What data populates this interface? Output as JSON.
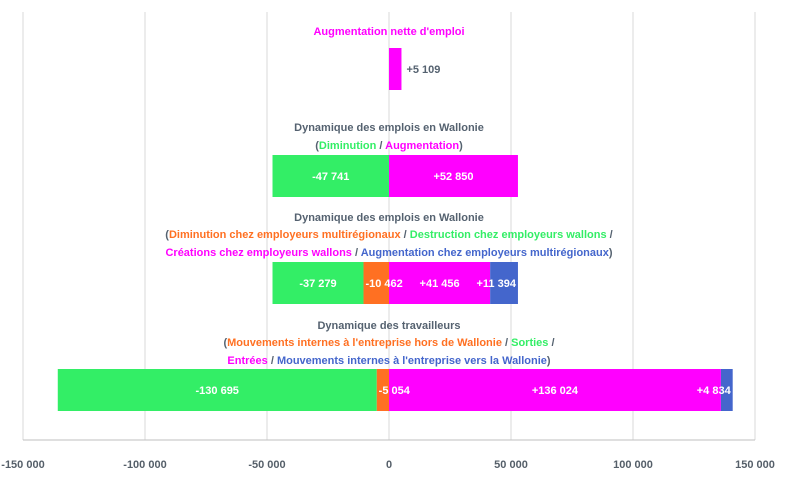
{
  "chart_data": {
    "type": "bar",
    "orientation": "horizontal",
    "stacked": true,
    "xlim": [
      -150000,
      150000
    ],
    "ticks": [
      -150000,
      -100000,
      -50000,
      0,
      50000,
      100000,
      150000
    ],
    "tick_labels": [
      "-150 000",
      "-100 000",
      "-50 000",
      "0",
      "50 000",
      "100 000",
      "150 000"
    ],
    "grid": true,
    "colors": {
      "magenta": "#ff00ff",
      "green": "#33ee66",
      "orange": "#ff7022",
      "blue": "#4466cc",
      "gray": "#556270"
    },
    "groups": [
      {
        "title_lines": [
          [
            {
              "text": "Augmentation nette d'emploi",
              "color": "magenta"
            }
          ]
        ],
        "segments": [
          {
            "value": 5109,
            "label": "+5 109",
            "color": "magenta",
            "label_outside": true
          }
        ]
      },
      {
        "title_lines": [
          [
            {
              "text": "Dynamique des emplois en Wallonie",
              "color": "gray"
            }
          ],
          [
            {
              "text": "(",
              "color": "gray"
            },
            {
              "text": "Diminution",
              "color": "green"
            },
            {
              "text": " / ",
              "color": "gray"
            },
            {
              "text": "Augmentation",
              "color": "magenta"
            },
            {
              "text": ")",
              "color": "gray"
            }
          ]
        ],
        "segments": [
          {
            "value": -47741,
            "label": "-47 741",
            "color": "green"
          },
          {
            "value": 52850,
            "label": "+52 850",
            "color": "magenta"
          }
        ]
      },
      {
        "title_lines": [
          [
            {
              "text": "Dynamique des emplois en Wallonie",
              "color": "gray"
            }
          ],
          [
            {
              "text": "(",
              "color": "gray"
            },
            {
              "text": "Diminution chez employeurs multirégionaux",
              "color": "orange"
            },
            {
              "text": " / ",
              "color": "gray"
            },
            {
              "text": "Destruction chez employeurs wallons",
              "color": "green"
            },
            {
              "text": " /",
              "color": "gray"
            }
          ],
          [
            {
              "text": "Créations chez employeurs wallons",
              "color": "magenta"
            },
            {
              "text": " / ",
              "color": "gray"
            },
            {
              "text": "Augmentation chez employeurs multirégionaux",
              "color": "blue"
            },
            {
              "text": ")",
              "color": "gray"
            }
          ]
        ],
        "segments": [
          {
            "value": -10462,
            "label": "-10 462",
            "color": "orange"
          },
          {
            "value": -37279,
            "label": "-37 279",
            "color": "green"
          },
          {
            "value": 41456,
            "label": "+41 456",
            "color": "magenta"
          },
          {
            "value": 11394,
            "label": "+11 394",
            "color": "blue"
          }
        ]
      },
      {
        "title_lines": [
          [
            {
              "text": "Dynamique des travailleurs",
              "color": "gray"
            }
          ],
          [
            {
              "text": "(",
              "color": "gray"
            },
            {
              "text": "Mouvements internes à l'entreprise hors de Wallonie",
              "color": "orange"
            },
            {
              "text": " / ",
              "color": "gray"
            },
            {
              "text": "Sorties",
              "color": "green"
            },
            {
              "text": " /",
              "color": "gray"
            }
          ],
          [
            {
              "text": "Entrées",
              "color": "magenta"
            },
            {
              "text": " / ",
              "color": "gray"
            },
            {
              "text": "Mouvements internes à l'entreprise vers la Wallonie",
              "color": "blue"
            },
            {
              "text": ")",
              "color": "gray"
            }
          ]
        ],
        "segments": [
          {
            "value": -5054,
            "label": "-5 054",
            "color": "orange"
          },
          {
            "value": -130695,
            "label": "-130 695",
            "color": "green"
          },
          {
            "value": 136024,
            "label": "+136 024",
            "color": "magenta"
          },
          {
            "value": 4834,
            "label": "+4 834",
            "color": "blue"
          }
        ]
      }
    ]
  }
}
